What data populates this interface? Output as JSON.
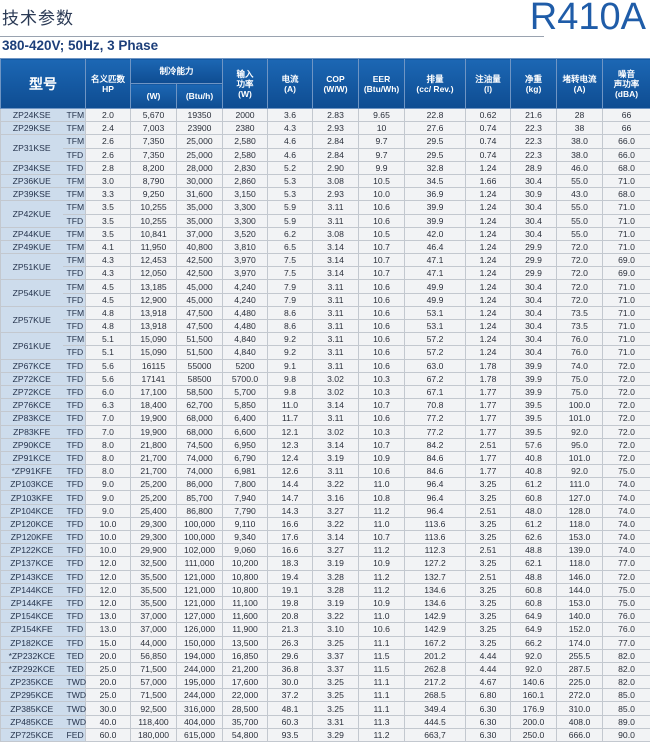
{
  "header": {
    "title": "技术参数",
    "brand": "R410A",
    "subtitle": "380-420V; 50Hz, 3 Phase"
  },
  "colors": {
    "accent": "#1f5ca8",
    "header_bg": "#1461ac",
    "model_col_bg": "#cddcec",
    "cell_bg": "#f2f3f5"
  },
  "table": {
    "columns": {
      "model": "型号",
      "hp": [
        "名义匹数",
        "HP"
      ],
      "cooling": "制冷能力",
      "cooling_w": "(W)",
      "cooling_btu": "(Btu/h)",
      "input": [
        "输入",
        "功率",
        "(W)"
      ],
      "current": [
        "电流",
        "(A)"
      ],
      "cop": [
        "COP",
        "(W/W)"
      ],
      "eer": [
        "EER",
        "(Btu/Wh)"
      ],
      "displacement": [
        "排量",
        "(cc/ Rev.)"
      ],
      "oil": [
        "注油量",
        "(l)"
      ],
      "weight": [
        "净重",
        "(kg)"
      ],
      "lra": [
        "堵转电流",
        "(A)"
      ],
      "noise": [
        "噪音",
        "声功率",
        "(dBA)"
      ]
    },
    "rows": [
      {
        "model": "ZP24KSE",
        "span": 1,
        "v": [
          "TFM",
          "2.0",
          "5,670",
          "19350",
          "2000",
          "3.6",
          "2.83",
          "9.65",
          "22.8",
          "0.62",
          "21.6",
          "28",
          "66"
        ]
      },
      {
        "model": "ZP29KSE",
        "span": 1,
        "v": [
          "TFM",
          "2.4",
          "7,003",
          "23900",
          "2380",
          "4.3",
          "2.93",
          "10",
          "27.6",
          "0.74",
          "22.3",
          "38",
          "66"
        ]
      },
      {
        "model": "ZP31KSE",
        "span": 2,
        "v": [
          "TFM",
          "2.6",
          "7,350",
          "25,000",
          "2,580",
          "4.6",
          "2.84",
          "9.7",
          "29.5",
          "0.74",
          "22.3",
          "38.0",
          "66.0"
        ]
      },
      {
        "model": null,
        "v": [
          "TFD",
          "2.6",
          "7,350",
          "25,000",
          "2,580",
          "4.6",
          "2.84",
          "9.7",
          "29.5",
          "0.74",
          "22.3",
          "38.0",
          "66.0"
        ]
      },
      {
        "model": "ZP34KSE",
        "span": 1,
        "v": [
          "TFD",
          "2.8",
          "8,200",
          "28,000",
          "2,830",
          "5.2",
          "2.90",
          "9.9",
          "32.8",
          "1.24",
          "28.9",
          "46.0",
          "68.0"
        ]
      },
      {
        "model": "ZP36KUE",
        "span": 1,
        "v": [
          "TFM",
          "3.0",
          "8,790",
          "30,000",
          "2,860",
          "5.3",
          "3.08",
          "10.5",
          "34.5",
          "1.66",
          "30.4",
          "55.0",
          "71.0"
        ]
      },
      {
        "model": "ZP39KSE",
        "span": 1,
        "v": [
          "TFM",
          "3.3",
          "9,250",
          "31,600",
          "3,150",
          "5.3",
          "2.93",
          "10.0",
          "36.9",
          "1.24",
          "30.9",
          "43.0",
          "68.0"
        ]
      },
      {
        "model": "ZP42KUE",
        "span": 2,
        "v": [
          "TFM",
          "3.5",
          "10,255",
          "35,000",
          "3,300",
          "5.9",
          "3.11",
          "10.6",
          "39.9",
          "1.24",
          "30.4",
          "55.0",
          "71.0"
        ]
      },
      {
        "model": null,
        "v": [
          "TFD",
          "3.5",
          "10,255",
          "35,000",
          "3,300",
          "5.9",
          "3.11",
          "10.6",
          "39.9",
          "1.24",
          "30.4",
          "55.0",
          "71.0"
        ]
      },
      {
        "model": "ZP44KUE",
        "span": 1,
        "v": [
          "TFM",
          "3.5",
          "10,841",
          "37,000",
          "3,520",
          "6.2",
          "3.08",
          "10.5",
          "42.0",
          "1.24",
          "30.4",
          "55.0",
          "71.0"
        ]
      },
      {
        "model": "ZP49KUE",
        "span": 1,
        "v": [
          "TFM",
          "4.1",
          "11,950",
          "40,800",
          "3,810",
          "6.5",
          "3.14",
          "10.7",
          "46.4",
          "1.24",
          "29.9",
          "72.0",
          "71.0"
        ]
      },
      {
        "model": "ZP51KUE",
        "span": 2,
        "v": [
          "TFM",
          "4.3",
          "12,453",
          "42,500",
          "3,970",
          "7.5",
          "3.14",
          "10.7",
          "47.1",
          "1.24",
          "29.9",
          "72.0",
          "69.0"
        ]
      },
      {
        "model": null,
        "v": [
          "TFD",
          "4.3",
          "12,050",
          "42,500",
          "3,970",
          "7.5",
          "3.14",
          "10.7",
          "47.1",
          "1.24",
          "29.9",
          "72.0",
          "69.0"
        ]
      },
      {
        "model": "ZP54KUE",
        "span": 2,
        "v": [
          "TFM",
          "4.5",
          "13,185",
          "45,000",
          "4,240",
          "7.9",
          "3.11",
          "10.6",
          "49.9",
          "1.24",
          "30.4",
          "72.0",
          "71.0"
        ]
      },
      {
        "model": null,
        "v": [
          "TFD",
          "4.5",
          "12,900",
          "45,000",
          "4,240",
          "7.9",
          "3.11",
          "10.6",
          "49.9",
          "1.24",
          "30.4",
          "72.0",
          "71.0"
        ]
      },
      {
        "model": "ZP57KUE",
        "span": 2,
        "v": [
          "TFM",
          "4.8",
          "13,918",
          "47,500",
          "4,480",
          "8.6",
          "3.11",
          "10.6",
          "53.1",
          "1.24",
          "30.4",
          "73.5",
          "71.0"
        ]
      },
      {
        "model": null,
        "v": [
          "TFD",
          "4.8",
          "13,918",
          "47,500",
          "4,480",
          "8.6",
          "3.11",
          "10.6",
          "53.1",
          "1.24",
          "30.4",
          "73.5",
          "71.0"
        ]
      },
      {
        "model": "ZP61KUE",
        "span": 2,
        "v": [
          "TFM",
          "5.1",
          "15,090",
          "51,500",
          "4,840",
          "9.2",
          "3.11",
          "10.6",
          "57.2",
          "1.24",
          "30.4",
          "76.0",
          "71.0"
        ]
      },
      {
        "model": null,
        "v": [
          "TFD",
          "5.1",
          "15,090",
          "51,500",
          "4,840",
          "9.2",
          "3.11",
          "10.6",
          "57.2",
          "1.24",
          "30.4",
          "76.0",
          "71.0"
        ]
      },
      {
        "model": "ZP67KCE",
        "span": 1,
        "v": [
          "TFD",
          "5.6",
          "16115",
          "55000",
          "5200",
          "9.1",
          "3.11",
          "10.6",
          "63.0",
          "1.78",
          "39.9",
          "74.0",
          "72.0"
        ]
      },
      {
        "model": "ZP72KCE",
        "span": 1,
        "v": [
          "TFD",
          "5.6",
          "17141",
          "58500",
          "5700.0",
          "9.8",
          "3.02",
          "10.3",
          "67.2",
          "1.78",
          "39.9",
          "75.0",
          "72.0"
        ]
      },
      {
        "model": "ZP72KCE",
        "span": 1,
        "v": [
          "TFD",
          "6.0",
          "17,100",
          "58,500",
          "5,700",
          "9.8",
          "3.02",
          "10.3",
          "67.1",
          "1.77",
          "39.9",
          "75.0",
          "72.0"
        ]
      },
      {
        "model": "ZP76KCE",
        "span": 1,
        "v": [
          "TFD",
          "6.3",
          "18,400",
          "62,700",
          "5,850",
          "11.0",
          "3.14",
          "10.7",
          "70.8",
          "1.77",
          "39.5",
          "100.0",
          "72.0"
        ]
      },
      {
        "model": "ZP83KCE",
        "span": 1,
        "v": [
          "TFD",
          "7.0",
          "19,900",
          "68,000",
          "6,400",
          "11.7",
          "3.11",
          "10.6",
          "77.2",
          "1.77",
          "39.5",
          "101.0",
          "72.0"
        ]
      },
      {
        "model": "ZP83KFE",
        "span": 1,
        "v": [
          "TFD",
          "7.0",
          "19,900",
          "68,000",
          "6,600",
          "12.1",
          "3.02",
          "10.3",
          "77.2",
          "1.77",
          "39.5",
          "92.0",
          "72.0"
        ]
      },
      {
        "model": "ZP90KCE",
        "span": 1,
        "v": [
          "TFD",
          "8.0",
          "21,800",
          "74,500",
          "6,950",
          "12.3",
          "3.14",
          "10.7",
          "84.2",
          "2.51",
          "57.6",
          "95.0",
          "72.0"
        ]
      },
      {
        "model": "ZP91KCE",
        "span": 1,
        "v": [
          "TFD",
          "8.0",
          "21,700",
          "74,000",
          "6,790",
          "12.4",
          "3.19",
          "10.9",
          "84.6",
          "1.77",
          "40.8",
          "101.0",
          "72.0"
        ]
      },
      {
        "model": "*ZP91KFE",
        "span": 1,
        "v": [
          "TFD",
          "8.0",
          "21,700",
          "74,000",
          "6,981",
          "12.6",
          "3.11",
          "10.6",
          "84.6",
          "1.77",
          "40.8",
          "92.0",
          "75.0"
        ]
      },
      {
        "model": "ZP103KCE",
        "span": 1,
        "v": [
          "TFD",
          "9.0",
          "25,200",
          "86,000",
          "7,800",
          "14.4",
          "3.22",
          "11.0",
          "96.4",
          "3.25",
          "61.2",
          "111.0",
          "74.0"
        ]
      },
      {
        "model": "ZP103KFE",
        "span": 1,
        "v": [
          "TFD",
          "9.0",
          "25,200",
          "85,700",
          "7,940",
          "14.7",
          "3.16",
          "10.8",
          "96.4",
          "3.25",
          "60.8",
          "127.0",
          "74.0"
        ]
      },
      {
        "model": "ZP104KCE",
        "span": 1,
        "v": [
          "TFD",
          "9.0",
          "25,400",
          "86,800",
          "7,790",
          "14.3",
          "3.27",
          "11.2",
          "96.4",
          "2.51",
          "48.0",
          "128.0",
          "74.0"
        ]
      },
      {
        "model": "ZP120KCE",
        "span": 1,
        "v": [
          "TFD",
          "10.0",
          "29,300",
          "100,000",
          "9,110",
          "16.6",
          "3.22",
          "11.0",
          "113.6",
          "3.25",
          "61.2",
          "118.0",
          "74.0"
        ]
      },
      {
        "model": "ZP120KFE",
        "span": 1,
        "v": [
          "TFD",
          "10.0",
          "29,300",
          "100,000",
          "9,340",
          "17.6",
          "3.14",
          "10.7",
          "113.6",
          "3.25",
          "62.6",
          "153.0",
          "74.0"
        ]
      },
      {
        "model": "ZP122KCE",
        "span": 1,
        "v": [
          "TFD",
          "10.0",
          "29,900",
          "102,000",
          "9,060",
          "16.6",
          "3.27",
          "11.2",
          "112.3",
          "2.51",
          "48.8",
          "139.0",
          "74.0"
        ]
      },
      {
        "model": "ZP137KCE",
        "span": 1,
        "v": [
          "TFD",
          "12.0",
          "32,500",
          "111,000",
          "10,200",
          "18.3",
          "3.19",
          "10.9",
          "127.2",
          "3.25",
          "62.1",
          "118.0",
          "77.0"
        ]
      },
      {
        "model": "ZP143KCE",
        "span": 1,
        "v": [
          "TFD",
          "12.0",
          "35,500",
          "121,000",
          "10,800",
          "19.4",
          "3.28",
          "11.2",
          "132.7",
          "2.51",
          "48.8",
          "146.0",
          "72.0"
        ]
      },
      {
        "model": "ZP144KCE",
        "span": 1,
        "v": [
          "TFD",
          "12.0",
          "35,500",
          "121,000",
          "10,800",
          "19.1",
          "3.28",
          "11.2",
          "134.6",
          "3.25",
          "60.8",
          "144.0",
          "75.0"
        ]
      },
      {
        "model": "ZP144KFE",
        "span": 1,
        "v": [
          "TFD",
          "12.0",
          "35,500",
          "121,000",
          "11,100",
          "19.8",
          "3.19",
          "10.9",
          "134.6",
          "3.25",
          "60.8",
          "153.0",
          "75.0"
        ]
      },
      {
        "model": "ZP154KCE",
        "span": 1,
        "v": [
          "TFD",
          "13.0",
          "37,000",
          "127,000",
          "11,600",
          "20.8",
          "3.22",
          "11.0",
          "142.9",
          "3.25",
          "64.9",
          "140.0",
          "76.0"
        ]
      },
      {
        "model": "ZP154KFE",
        "span": 1,
        "v": [
          "TFD",
          "13.0",
          "37,000",
          "126,000",
          "11,900",
          "21.3",
          "3.10",
          "10.6",
          "142.9",
          "3.25",
          "64.9",
          "152.0",
          "76.0"
        ]
      },
      {
        "model": "ZP182KCE",
        "span": 1,
        "v": [
          "TFD",
          "15.0",
          "44,000",
          "150,000",
          "13,500",
          "26.3",
          "3.25",
          "11.1",
          "167.2",
          "3.25",
          "66.2",
          "174.0",
          "77.0"
        ]
      },
      {
        "model": "*ZP232KCE",
        "span": 1,
        "v": [
          "TED",
          "20.0",
          "56,850",
          "194,000",
          "16,850",
          "29.6",
          "3.37",
          "11.5",
          "201.2",
          "4.44",
          "92.0",
          "255.5",
          "82.0"
        ]
      },
      {
        "model": "*ZP292KCE",
        "span": 1,
        "v": [
          "TED",
          "25.0",
          "71,500",
          "244,000",
          "21,200",
          "36.8",
          "3.37",
          "11.5",
          "262.8",
          "4.44",
          "92.0",
          "287.5",
          "82.0"
        ]
      },
      {
        "model": "ZP235KCE",
        "span": 1,
        "v": [
          "TWD",
          "20.0",
          "57,000",
          "195,000",
          "17,600",
          "30.0",
          "3.25",
          "11.1",
          "217.2",
          "4.67",
          "140.6",
          "225.0",
          "82.0"
        ]
      },
      {
        "model": "ZP295KCE",
        "span": 1,
        "v": [
          "TWD",
          "25.0",
          "71,500",
          "244,000",
          "22,000",
          "37.2",
          "3.25",
          "11.1",
          "268.5",
          "6.80",
          "160.1",
          "272.0",
          "85.0"
        ]
      },
      {
        "model": "ZP385KCE",
        "span": 1,
        "v": [
          "TWD",
          "30.0",
          "92,500",
          "316,000",
          "28,500",
          "48.1",
          "3.25",
          "11.1",
          "349.4",
          "6.30",
          "176.9",
          "310.0",
          "85.0"
        ]
      },
      {
        "model": "ZP485KCE",
        "span": 1,
        "v": [
          "TWD",
          "40.0",
          "118,400",
          "404,000",
          "35,700",
          "60.3",
          "3.31",
          "11.3",
          "444.5",
          "6.30",
          "200.0",
          "408.0",
          "89.0"
        ]
      },
      {
        "model": "ZP725KCE",
        "span": 1,
        "v": [
          "FED",
          "60.0",
          "180,000",
          "615,000",
          "54,800",
          "93.5",
          "3.29",
          "11.2",
          "663,7",
          "6.30",
          "250.0",
          "666.0",
          "90.0"
        ]
      }
    ]
  }
}
